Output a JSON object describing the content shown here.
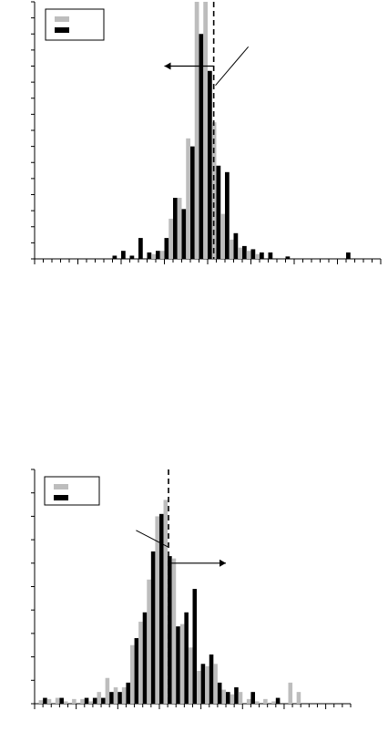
{
  "colors": {
    "series_a": "#bdbdbd",
    "series_b": "#000000",
    "axis": "#000000"
  },
  "chart_data": [
    {
      "type": "bar",
      "xlim": [
        0,
        40
      ],
      "ylim": [
        0,
        16
      ],
      "grid": false,
      "legend": {
        "placement": "top-left",
        "entries": [
          "",
          ""
        ]
      },
      "threshold_line": {
        "x": 20.7,
        "style": "dashed"
      },
      "annotations": [
        {
          "type": "arrow",
          "from_x": 20.7,
          "to_x": 15.0,
          "y": 12.0,
          "direction": "left"
        },
        {
          "type": "leader",
          "from_x": 20.9,
          "from_y": 10.8,
          "to_x": 24.7,
          "to_y": 13.2
        }
      ],
      "x": [
        9,
        10,
        11,
        12,
        13,
        14,
        15,
        16,
        17,
        18,
        19,
        20,
        21,
        22,
        23,
        24,
        25,
        26,
        27,
        28,
        29,
        30,
        31,
        32,
        33,
        34,
        35,
        36,
        37,
        38,
        39,
        40
      ],
      "series": [
        {
          "values": [
            0,
            0,
            0,
            0,
            0,
            0.3,
            0.5,
            2.5,
            3.8,
            7.5,
            16,
            16,
            8.5,
            2.8,
            1.2,
            0.7,
            0.5,
            0.3,
            0,
            0,
            0,
            0,
            0,
            0,
            0,
            0,
            0,
            0,
            0,
            0,
            0,
            0
          ]
        },
        {
          "values": [
            0.2,
            0.5,
            0.2,
            1.3,
            0.4,
            0.5,
            1.3,
            3.8,
            3.1,
            7,
            14,
            11.7,
            5.8,
            5.4,
            1.6,
            0.8,
            0.6,
            0.4,
            0.4,
            0,
            0.15,
            0,
            0,
            0,
            0,
            0,
            0,
            0.4,
            0,
            0,
            0,
            0
          ]
        }
      ]
    },
    {
      "type": "bar",
      "xlim": [
        0,
        38
      ],
      "ylim": [
        0,
        10
      ],
      "grid": false,
      "legend": {
        "placement": "top-left",
        "entries": [
          "",
          ""
        ]
      },
      "threshold_line": {
        "x": 16.1,
        "style": "dashed"
      },
      "annotations": [
        {
          "type": "arrow",
          "from_x": 16.1,
          "to_x": 23.0,
          "y": 6.0,
          "direction": "right"
        },
        {
          "type": "leader",
          "from_x": 16.0,
          "from_y": 6.7,
          "to_x": 12.2,
          "to_y": 7.4
        }
      ],
      "x": [
        1,
        2,
        3,
        4,
        5,
        6,
        7,
        8,
        9,
        10,
        11,
        12,
        13,
        14,
        15,
        16,
        17,
        18,
        19,
        20,
        21,
        22,
        23,
        24,
        25,
        26,
        27,
        28,
        29,
        30,
        31,
        32,
        33
      ],
      "series": [
        {
          "values": [
            0.15,
            0.2,
            0.25,
            0.1,
            0.2,
            0.2,
            0.1,
            0.5,
            1.1,
            0.7,
            0.7,
            2.5,
            3.5,
            5.3,
            8,
            8.7,
            6.2,
            3.4,
            2.4,
            1.4,
            1.6,
            1.7,
            0.6,
            0.4,
            0.5,
            0.2,
            0.1,
            0.2,
            0.1,
            0,
            0.9,
            0.5,
            0
          ]
        },
        {
          "values": [
            0.25,
            0,
            0.25,
            0,
            0,
            0.25,
            0.25,
            0.25,
            0.5,
            0.5,
            0.9,
            2.8,
            3.9,
            6.5,
            8.1,
            6.3,
            3.3,
            3.9,
            4.9,
            1.7,
            2.1,
            0.9,
            0.5,
            0.7,
            0,
            0.5,
            0,
            0,
            0.25,
            0,
            0,
            0,
            0
          ]
        }
      ]
    }
  ]
}
